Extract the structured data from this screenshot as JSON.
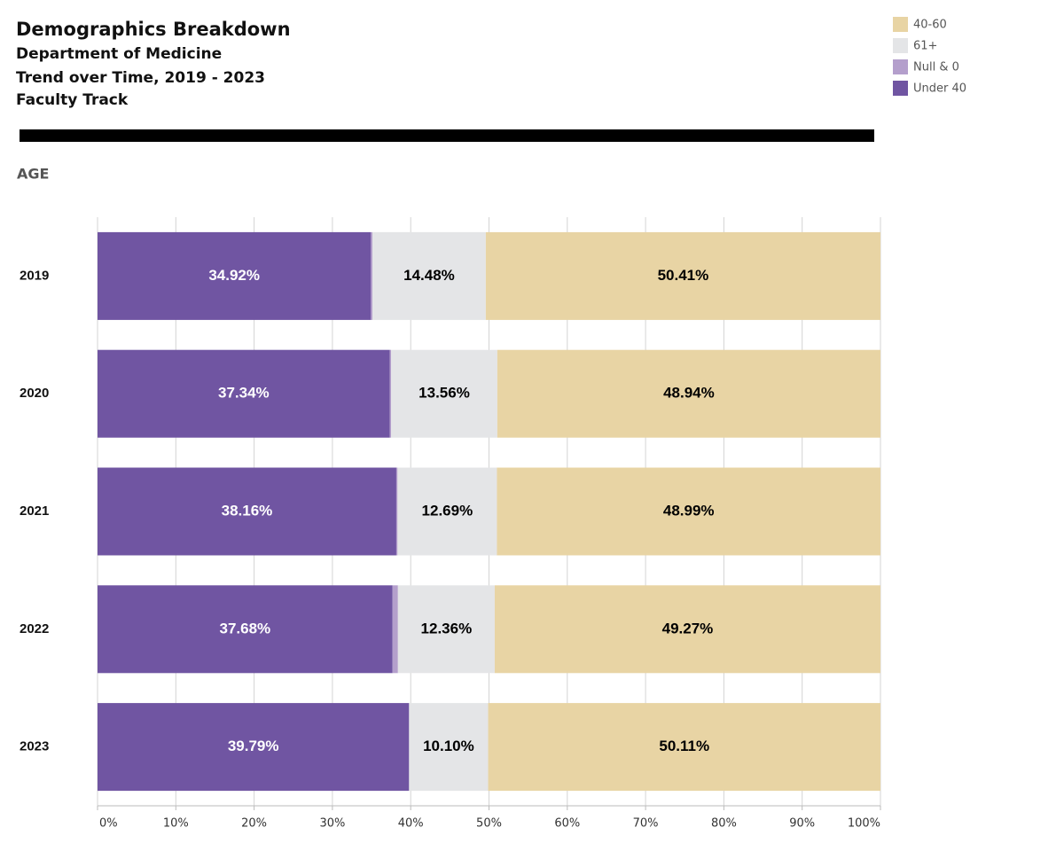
{
  "chart_data": {
    "type": "stacked_bar_horizontal",
    "title": "Demographics Breakdown",
    "subtitle": [
      "Department of Medicine",
      "Trend over Time, 2019 - 2023",
      "Faculty Track"
    ],
    "section_label": "AGE",
    "categories": [
      "2019",
      "2020",
      "2021",
      "2022",
      "2023"
    ],
    "series": [
      {
        "name": "Under 40",
        "color": "#7055a2",
        "label_color": "#ffffff",
        "values": [
          34.92,
          37.34,
          38.16,
          37.68,
          39.79
        ],
        "value_labels": [
          "34.92%",
          "37.34%",
          "38.16%",
          "37.68%",
          "39.79%"
        ]
      },
      {
        "name": "Null & 0",
        "color": "#b49fcc",
        "values": [
          0.19,
          0.16,
          0.16,
          0.69,
          0
        ]
      },
      {
        "name": "61+",
        "color": "#e4e5e7",
        "label_color": "#000000",
        "values": [
          14.48,
          13.56,
          12.69,
          12.36,
          10.1
        ],
        "value_labels": [
          "14.48%",
          "13.56%",
          "12.69%",
          "12.36%",
          "10.10%"
        ]
      },
      {
        "name": "40-60",
        "color": "#e8d4a4",
        "label_color": "#000000",
        "values": [
          50.41,
          48.94,
          48.99,
          49.27,
          50.11
        ],
        "value_labels": [
          "50.41%",
          "48.94%",
          "48.99%",
          "49.27%",
          "50.11%"
        ]
      }
    ],
    "xlim": [
      0,
      100
    ],
    "xticks": [
      {
        "value": 0,
        "label": "0%"
      },
      {
        "value": 10,
        "label": "10%"
      },
      {
        "value": 20,
        "label": "20%"
      },
      {
        "value": 30,
        "label": "30%"
      },
      {
        "value": 40,
        "label": "40%"
      },
      {
        "value": 50,
        "label": "50%"
      },
      {
        "value": 60,
        "label": "60%"
      },
      {
        "value": 70,
        "label": "70%"
      },
      {
        "value": 80,
        "label": "80%"
      },
      {
        "value": 90,
        "label": "90%"
      },
      {
        "value": 100,
        "label": "100%"
      }
    ],
    "grid": true,
    "legend": "top-right"
  }
}
